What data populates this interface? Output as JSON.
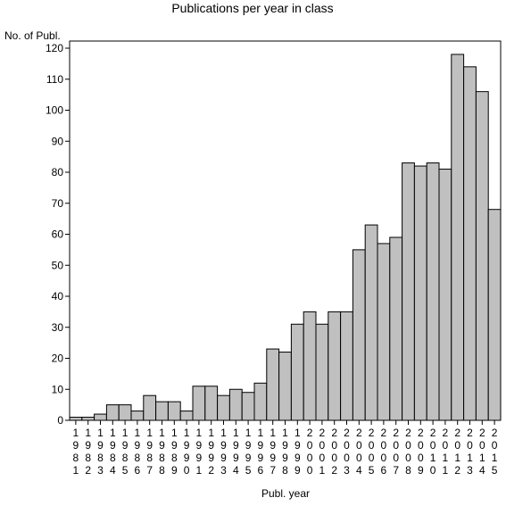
{
  "chart_data": {
    "type": "bar",
    "title": "Publications per year in class",
    "ylabel": "No. of Publ.",
    "xlabel": "Publ. year",
    "ylim": [
      0,
      120
    ],
    "yticks": [
      0,
      10,
      20,
      30,
      40,
      50,
      60,
      70,
      80,
      90,
      100,
      110,
      120
    ],
    "categories": [
      "1981",
      "1982",
      "1983",
      "1984",
      "1985",
      "1986",
      "1987",
      "1988",
      "1989",
      "1990",
      "1991",
      "1992",
      "1993",
      "1994",
      "1995",
      "1996",
      "1997",
      "1998",
      "1999",
      "2000",
      "2001",
      "2002",
      "2003",
      "2004",
      "2005",
      "2006",
      "2007",
      "2008",
      "2009",
      "2010",
      "2011",
      "2012",
      "2013",
      "2014",
      "2015"
    ],
    "values": [
      1,
      1,
      2,
      5,
      5,
      3,
      8,
      6,
      6,
      3,
      11,
      11,
      8,
      10,
      9,
      12,
      23,
      22,
      31,
      35,
      31,
      35,
      35,
      55,
      63,
      57,
      59,
      83,
      82,
      83,
      81,
      118,
      114,
      106,
      68
    ],
    "colors": {
      "bar": "#c0c0c0",
      "stroke": "#000000"
    }
  }
}
